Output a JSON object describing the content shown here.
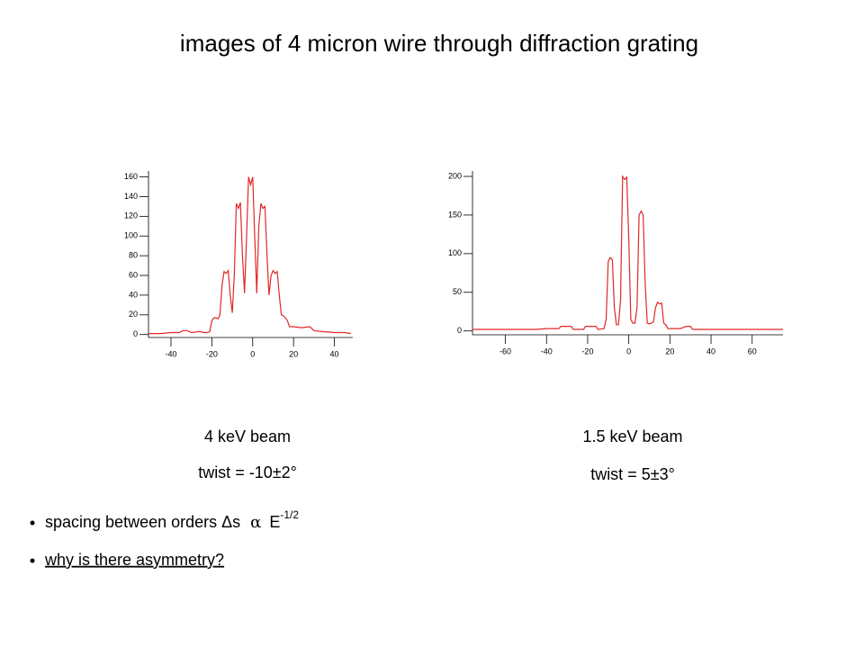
{
  "title": "images of 4 micron wire through diffraction grating",
  "captions": [
    {
      "beam": "4 keV beam",
      "twist": "twist = -10±2°"
    },
    {
      "beam": "1.5 keV beam",
      "twist": "twist = 5±3°"
    }
  ],
  "bullets": [
    {
      "text": "spacing between orders Δs",
      "symbol": "α",
      "base": "E",
      "sup": "-1/2"
    },
    {
      "text": "why is there asymmetry?"
    }
  ],
  "chart_data": [
    {
      "type": "line",
      "color": "#e02828",
      "xlim": [
        -51,
        49
      ],
      "ylim": [
        -3,
        166
      ],
      "xticks": [
        -40,
        -20,
        0,
        20,
        40
      ],
      "yticks": [
        0,
        20,
        40,
        60,
        80,
        100,
        120,
        140,
        160
      ],
      "x": [
        -51,
        -45,
        -40,
        -36,
        -34,
        -32,
        -30,
        -26,
        -24,
        -22,
        -21,
        -20,
        -19,
        -18,
        -17,
        -16,
        -15,
        -14,
        -13,
        -12,
        -11,
        -10,
        -9,
        -8,
        -7,
        -6,
        -5,
        -4,
        -3,
        -2,
        -1,
        0,
        1,
        2,
        3,
        4,
        5,
        6,
        7,
        8,
        9,
        10,
        11,
        12,
        13,
        14,
        15,
        16,
        17,
        18,
        20,
        24,
        28,
        30,
        34,
        40,
        45,
        48
      ],
      "values": [
        1,
        1,
        2,
        2,
        4,
        4,
        2,
        3,
        2,
        2,
        3,
        14,
        17,
        17,
        16,
        20,
        50,
        64,
        62,
        65,
        40,
        22,
        60,
        133,
        128,
        134,
        80,
        42,
        100,
        160,
        152,
        160,
        100,
        42,
        110,
        133,
        128,
        130,
        80,
        40,
        60,
        65,
        62,
        64,
        40,
        20,
        19,
        17,
        14,
        8,
        8,
        7,
        8,
        4,
        3,
        2,
        2,
        1
      ]
    },
    {
      "type": "line",
      "color": "#e02828",
      "xlim": [
        -76,
        75
      ],
      "ylim": [
        -5,
        207
      ],
      "xticks": [
        -60,
        -40,
        -20,
        0,
        20,
        40,
        60
      ],
      "yticks": [
        0,
        50,
        100,
        150,
        200
      ],
      "x": [
        -76,
        -60,
        -45,
        -40,
        -34,
        -33,
        -28,
        -27,
        -22,
        -21,
        -16,
        -15,
        -12,
        -11,
        -10,
        -9,
        -8,
        -7,
        -6,
        -5,
        -4,
        -3,
        -2,
        -1,
        0,
        1,
        2,
        3,
        4,
        5,
        6,
        7,
        8,
        9,
        10,
        11,
        12,
        13,
        14,
        15,
        16,
        17,
        18,
        19,
        25,
        28,
        30,
        31,
        40,
        55,
        75
      ],
      "values": [
        2,
        2,
        2,
        3,
        3,
        6,
        6,
        2,
        2,
        6,
        6,
        2,
        3,
        15,
        90,
        95,
        92,
        30,
        8,
        8,
        40,
        200,
        196,
        199,
        120,
        15,
        10,
        10,
        30,
        150,
        155,
        150,
        60,
        10,
        9,
        10,
        12,
        30,
        37,
        35,
        36,
        10,
        8,
        3,
        3,
        6,
        6,
        2,
        2,
        2,
        2
      ]
    }
  ]
}
